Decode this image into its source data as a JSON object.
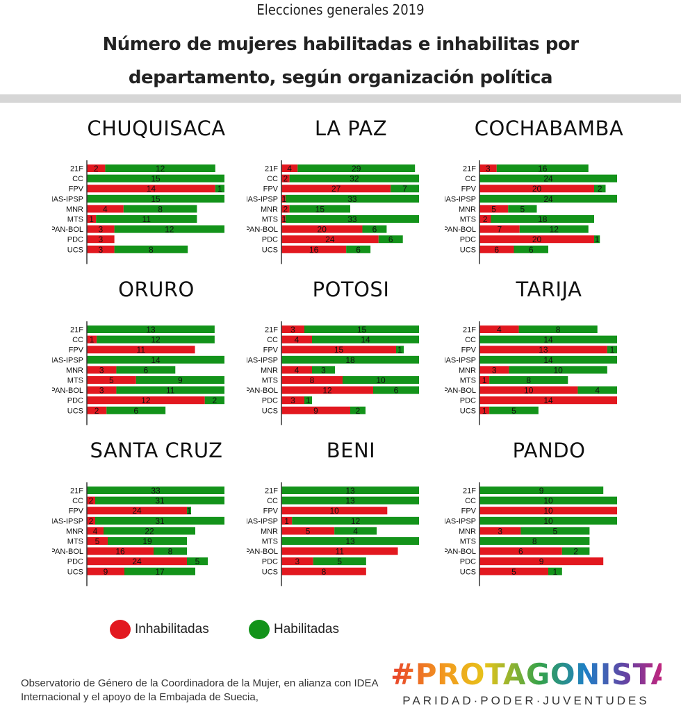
{
  "header": {
    "subtitle": "Elecciones generales 2019",
    "title": "Número de mujeres habilitadas e inhabilitas por departamento, según organización política"
  },
  "colors": {
    "inhabilitadas": "#e2181f",
    "habilitadas": "#13931a",
    "axis": "#333333"
  },
  "legend": {
    "inhabilitadas": "Inhabilitadas",
    "habilitadas": "Habilitadas"
  },
  "footer": {
    "note": "Observatorio de Género de la Coordinadora de la Mujer, en alianza con IDEA Internacional y el apoyo de la Embajada de Suecia,"
  },
  "brand": {
    "name": "#PROTAGONISTAS",
    "tagline": "PARIDAD·PODER·JUVENTUDES"
  },
  "chart_data": [
    {
      "type": "bar",
      "stacked": true,
      "orientation": "horizontal",
      "title": "CHUQUISACA",
      "categories": [
        "21F",
        "CC",
        "FPV",
        "MAS-IPSP",
        "MNR",
        "MTS",
        "PAN-BOL",
        "PDC",
        "UCS"
      ],
      "series": [
        {
          "name": "Inhabilitadas",
          "values": [
            2,
            0,
            14,
            0,
            4,
            1,
            3,
            3,
            3
          ]
        },
        {
          "name": "Habilitadas",
          "values": [
            12,
            15,
            1,
            15,
            8,
            11,
            12,
            0,
            8
          ]
        }
      ]
    },
    {
      "type": "bar",
      "stacked": true,
      "orientation": "horizontal",
      "title": "LA PAZ",
      "categories": [
        "21F",
        "CC",
        "FPV",
        "MAS-IPSP",
        "MNR",
        "MTS",
        "PAN-BOL",
        "PDC",
        "UCS"
      ],
      "series": [
        {
          "name": "Inhabilitadas",
          "values": [
            4,
            2,
            27,
            1,
            2,
            1,
            20,
            24,
            16
          ]
        },
        {
          "name": "Habilitadas",
          "values": [
            29,
            32,
            7,
            33,
            15,
            33,
            6,
            6,
            6
          ]
        }
      ]
    },
    {
      "type": "bar",
      "stacked": true,
      "orientation": "horizontal",
      "title": "COCHABAMBA",
      "categories": [
        "21F",
        "CC",
        "FPV",
        "MAS-IPSP",
        "MNR",
        "MTS",
        "PAN-BOL",
        "PDC",
        "UCS"
      ],
      "series": [
        {
          "name": "Inhabilitadas",
          "values": [
            3,
            0,
            20,
            0,
            5,
            2,
            7,
            20,
            6
          ]
        },
        {
          "name": "Habilitadas",
          "values": [
            16,
            24,
            2,
            24,
            5,
            18,
            12,
            1,
            6
          ]
        }
      ]
    },
    {
      "type": "bar",
      "stacked": true,
      "orientation": "horizontal",
      "title": "ORURO",
      "categories": [
        "21F",
        "CC",
        "FPV",
        "MAS-IPSP",
        "MNR",
        "MTS",
        "PAN-BOL",
        "PDC",
        "UCS"
      ],
      "series": [
        {
          "name": "Inhabilitadas",
          "values": [
            0,
            1,
            11,
            0,
            3,
            5,
            3,
            12,
            2
          ]
        },
        {
          "name": "Habilitadas",
          "values": [
            13,
            12,
            0,
            14,
            6,
            9,
            11,
            2,
            6
          ]
        }
      ]
    },
    {
      "type": "bar",
      "stacked": true,
      "orientation": "horizontal",
      "title": "POTOSI",
      "categories": [
        "21F",
        "CC",
        "FPV",
        "MAS-IPSP",
        "MNR",
        "MTS",
        "PAN-BOL",
        "PDC",
        "UCS"
      ],
      "series": [
        {
          "name": "Inhabilitadas",
          "values": [
            3,
            4,
            15,
            0,
            4,
            8,
            12,
            3,
            9
          ]
        },
        {
          "name": "Habilitadas",
          "values": [
            15,
            14,
            1,
            18,
            3,
            10,
            6,
            1,
            2
          ]
        }
      ]
    },
    {
      "type": "bar",
      "stacked": true,
      "orientation": "horizontal",
      "title": "TARIJA",
      "categories": [
        "21F",
        "CC",
        "FPV",
        "MAS-IPSP",
        "MNR",
        "MTS",
        "PAN-BOL",
        "PDC",
        "UCS"
      ],
      "series": [
        {
          "name": "Inhabilitadas",
          "values": [
            4,
            0,
            13,
            0,
            3,
            1,
            10,
            14,
            1
          ]
        },
        {
          "name": "Habilitadas",
          "values": [
            8,
            14,
            1,
            14,
            10,
            8,
            4,
            0,
            5
          ]
        }
      ]
    },
    {
      "type": "bar",
      "stacked": true,
      "orientation": "horizontal",
      "title": "SANTA CRUZ",
      "categories": [
        "21F",
        "CC",
        "FPV",
        "MAS-IPSP",
        "MNR",
        "MTS",
        "PAN-BOL",
        "PDC",
        "UCS"
      ],
      "series": [
        {
          "name": "Inhabilitadas",
          "values": [
            0,
            2,
            24,
            2,
            4,
            5,
            16,
            24,
            9
          ]
        },
        {
          "name": "Habilitadas",
          "values": [
            33,
            31,
            1,
            31,
            22,
            19,
            8,
            5,
            17
          ]
        }
      ]
    },
    {
      "type": "bar",
      "stacked": true,
      "orientation": "horizontal",
      "title": "BENI",
      "categories": [
        "21F",
        "CC",
        "FPV",
        "MAS-IPSP",
        "MNR",
        "MTS",
        "PAN-BOL",
        "PDC",
        "UCS"
      ],
      "series": [
        {
          "name": "Inhabilitadas",
          "values": [
            0,
            0,
            10,
            1,
            5,
            0,
            11,
            3,
            8
          ]
        },
        {
          "name": "Habilitadas",
          "values": [
            13,
            13,
            0,
            12,
            4,
            13,
            0,
            5,
            0
          ]
        }
      ]
    },
    {
      "type": "bar",
      "stacked": true,
      "orientation": "horizontal",
      "title": "PANDO",
      "categories": [
        "21F",
        "CC",
        "FPV",
        "MAS-IPSP",
        "MNR",
        "MTS",
        "PAN-BOL",
        "PDC",
        "UCS"
      ],
      "series": [
        {
          "name": "Inhabilitadas",
          "values": [
            0,
            0,
            10,
            0,
            3,
            0,
            6,
            9,
            5
          ]
        },
        {
          "name": "Habilitadas",
          "values": [
            9,
            10,
            0,
            10,
            5,
            8,
            2,
            0,
            1
          ]
        }
      ]
    }
  ]
}
